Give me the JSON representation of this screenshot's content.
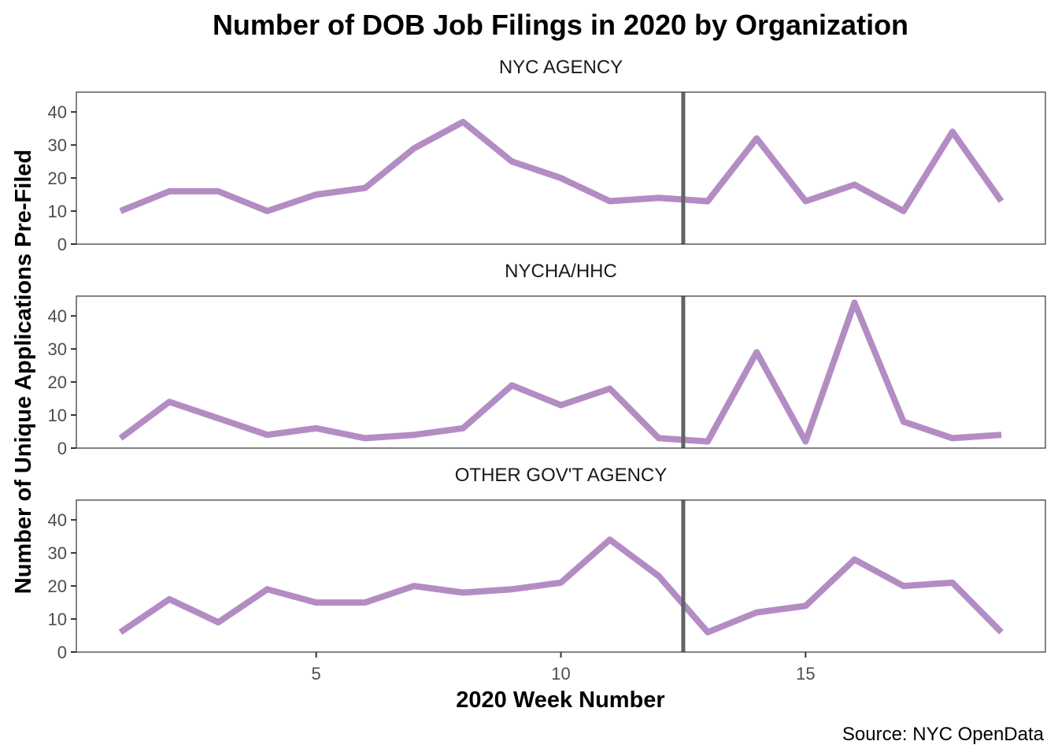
{
  "chart_data": {
    "type": "line",
    "title": "Number of DOB Job Filings in 2020 by Organization",
    "xlabel": "2020 Week Number",
    "ylabel": "Number of Unique Applications Pre-Filed",
    "caption": "Source: NYC OpenData",
    "x": [
      1,
      2,
      3,
      4,
      5,
      6,
      7,
      8,
      9,
      10,
      11,
      12,
      13,
      14,
      15,
      16,
      17,
      18,
      19
    ],
    "xlim": [
      0.1,
      19.9
    ],
    "ylim": [
      0,
      46
    ],
    "x_ticks": [
      5,
      10,
      15
    ],
    "y_ticks": [
      0,
      10,
      20,
      30,
      40
    ],
    "reference_line_x": 12.5,
    "line_color": "#b48cc4",
    "reference_color": "#636363",
    "grid": false,
    "legend": "none",
    "panels": [
      {
        "name": "NYC AGENCY",
        "values": [
          10,
          16,
          16,
          10,
          15,
          17,
          29,
          37,
          25,
          20,
          13,
          14,
          13,
          32,
          13,
          18,
          10,
          34,
          13
        ]
      },
      {
        "name": "NYCHA/HHC",
        "values": [
          3,
          14,
          9,
          4,
          6,
          3,
          4,
          6,
          19,
          13,
          18,
          3,
          2,
          29,
          2,
          44,
          8,
          3,
          4
        ]
      },
      {
        "name": "OTHER GOV'T AGENCY",
        "values": [
          6,
          16,
          9,
          19,
          15,
          15,
          20,
          18,
          19,
          21,
          34,
          23,
          6,
          12,
          14,
          28,
          20,
          21,
          6
        ]
      }
    ]
  }
}
